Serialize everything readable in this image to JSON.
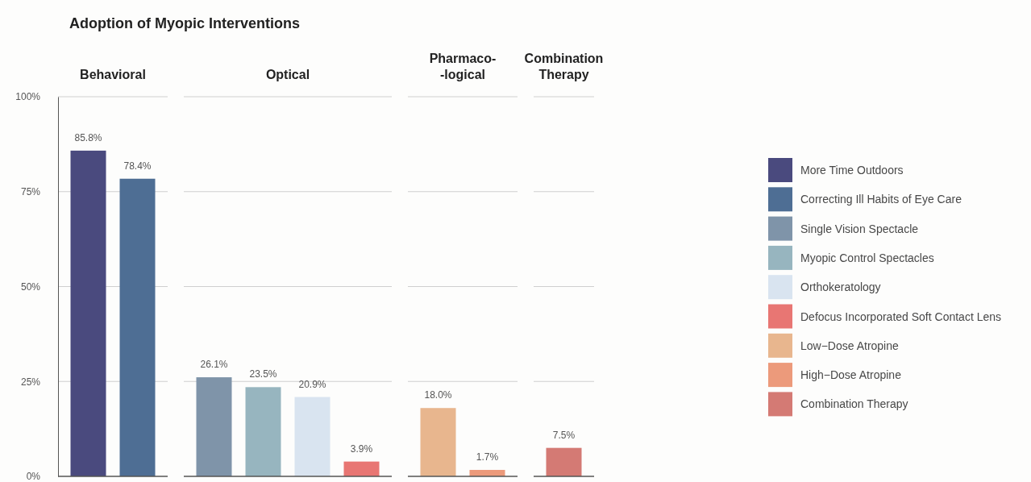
{
  "chart_data": {
    "type": "bar",
    "title": "Adoption of Myopic Interventions",
    "categories": [
      "Behavioral",
      "Optical",
      "Pharmaco-\n-logical",
      "Combination\nTherapy"
    ],
    "ylim": [
      0,
      100
    ],
    "yticks": [
      {
        "value": 0,
        "label": "0%"
      },
      {
        "value": 25,
        "label": "25%"
      },
      {
        "value": 50,
        "label": "50%"
      },
      {
        "value": 75,
        "label": "75%"
      },
      {
        "value": 100,
        "label": "100%"
      }
    ],
    "grid": "y",
    "legend": "right",
    "series": [
      {
        "name": "More Time Outdoors",
        "color": "#4a4a7e",
        "values": [
          85.8,
          null,
          null,
          null
        ],
        "value_labels": [
          "85.8%",
          null,
          null,
          null
        ]
      },
      {
        "name": "Correcting Ill Habits of Eye Care",
        "color": "#4e6e94",
        "values": [
          78.4,
          null,
          null,
          null
        ],
        "value_labels": [
          "78.4%",
          null,
          null,
          null
        ]
      },
      {
        "name": "Single Vision Spectacle",
        "color": "#7f94a9",
        "values": [
          null,
          26.1,
          null,
          null
        ],
        "value_labels": [
          null,
          "26.1%",
          null,
          null
        ]
      },
      {
        "name": "Myopic Control Spectacles",
        "color": "#97b5bf",
        "values": [
          null,
          23.5,
          null,
          null
        ],
        "value_labels": [
          null,
          "23.5%",
          null,
          null
        ]
      },
      {
        "name": "Orthokeratology",
        "color": "#d9e4f0",
        "values": [
          null,
          20.9,
          null,
          null
        ],
        "value_labels": [
          null,
          "20.9%",
          null,
          null
        ]
      },
      {
        "name": "Defocus Incorporated Soft Contact Lens",
        "color": "#e87673",
        "values": [
          null,
          3.9,
          null,
          null
        ],
        "value_labels": [
          null,
          "3.9%",
          null,
          null
        ]
      },
      {
        "name": "Low−Dose Atropine",
        "color": "#e8b68e",
        "values": [
          null,
          null,
          18.0,
          null
        ],
        "value_labels": [
          null,
          null,
          "18.0%",
          null
        ]
      },
      {
        "name": "High−Dose Atropine",
        "color": "#ec9a7b",
        "values": [
          null,
          null,
          1.7,
          null
        ],
        "value_labels": [
          null,
          null,
          "1.7%",
          null
        ]
      },
      {
        "name": "Combination Therapy",
        "color": "#d47a74",
        "values": [
          null,
          null,
          null,
          7.5
        ],
        "value_labels": [
          null,
          null,
          null,
          "7.5%"
        ]
      }
    ]
  }
}
